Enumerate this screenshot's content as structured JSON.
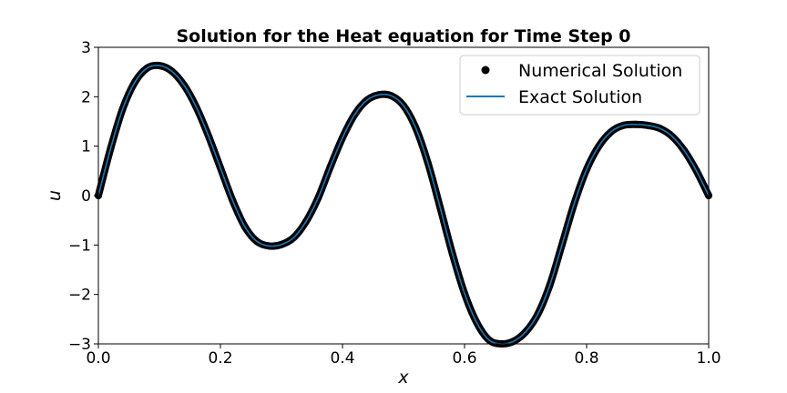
{
  "chart_data": {
    "type": "line",
    "title": "Solution for the Heat equation for Time Step 0",
    "xlabel": "x",
    "ylabel": "u",
    "xlim": [
      0.0,
      1.0
    ],
    "ylim": [
      -3,
      3
    ],
    "xticks": [
      0.0,
      0.2,
      0.4,
      0.6,
      0.8,
      1.0
    ],
    "xtick_labels": [
      "0.0",
      "0.2",
      "0.4",
      "0.6",
      "0.8",
      "1.0"
    ],
    "yticks": [
      3,
      2,
      1,
      0,
      -1,
      -2,
      -3
    ],
    "ytick_labels": [
      "3",
      "2",
      "1",
      "0",
      "−1",
      "−2",
      "−3"
    ],
    "grid": false,
    "legend_position": "top-right",
    "x": [
      0.0,
      0.02,
      0.04,
      0.06,
      0.08,
      0.1,
      0.12,
      0.14,
      0.16,
      0.18,
      0.2,
      0.22,
      0.24,
      0.26,
      0.28,
      0.3,
      0.32,
      0.34,
      0.36,
      0.38,
      0.4,
      0.42,
      0.44,
      0.46,
      0.48,
      0.5,
      0.52,
      0.54,
      0.56,
      0.58,
      0.6,
      0.62,
      0.64,
      0.66,
      0.68,
      0.7,
      0.72,
      0.74,
      0.76,
      0.78,
      0.8,
      0.82,
      0.84,
      0.86,
      0.88,
      0.9,
      0.92,
      0.94,
      0.96,
      0.98,
      1.0
    ],
    "series": [
      {
        "name": "Numerical Solution",
        "style": "markers",
        "color": "#000000",
        "values": [
          0.0,
          0.95,
          1.76,
          2.3,
          2.58,
          2.63,
          2.52,
          2.24,
          1.8,
          1.22,
          0.56,
          -0.1,
          -0.63,
          -0.93,
          -1.02,
          -0.99,
          -0.85,
          -0.53,
          -0.05,
          0.58,
          1.17,
          1.64,
          1.93,
          2.04,
          2.02,
          1.82,
          1.37,
          0.66,
          -0.24,
          -1.17,
          -1.98,
          -2.57,
          -2.92,
          -3.0,
          -2.95,
          -2.76,
          -2.4,
          -1.8,
          -0.98,
          -0.15,
          0.53,
          1.0,
          1.29,
          1.42,
          1.44,
          1.42,
          1.36,
          1.2,
          0.91,
          0.5,
          0.0
        ]
      },
      {
        "name": "Exact Solution",
        "style": "line",
        "color": "#1f77b4",
        "values": [
          0.0,
          0.95,
          1.76,
          2.3,
          2.58,
          2.63,
          2.52,
          2.24,
          1.8,
          1.22,
          0.56,
          -0.1,
          -0.63,
          -0.93,
          -1.02,
          -0.99,
          -0.85,
          -0.53,
          -0.05,
          0.58,
          1.17,
          1.64,
          1.93,
          2.04,
          2.02,
          1.82,
          1.37,
          0.66,
          -0.24,
          -1.17,
          -1.98,
          -2.57,
          -2.92,
          -3.0,
          -2.95,
          -2.76,
          -2.4,
          -1.8,
          -0.98,
          -0.15,
          0.53,
          1.0,
          1.29,
          1.42,
          1.44,
          1.42,
          1.36,
          1.2,
          0.91,
          0.5,
          0.0
        ]
      }
    ]
  }
}
